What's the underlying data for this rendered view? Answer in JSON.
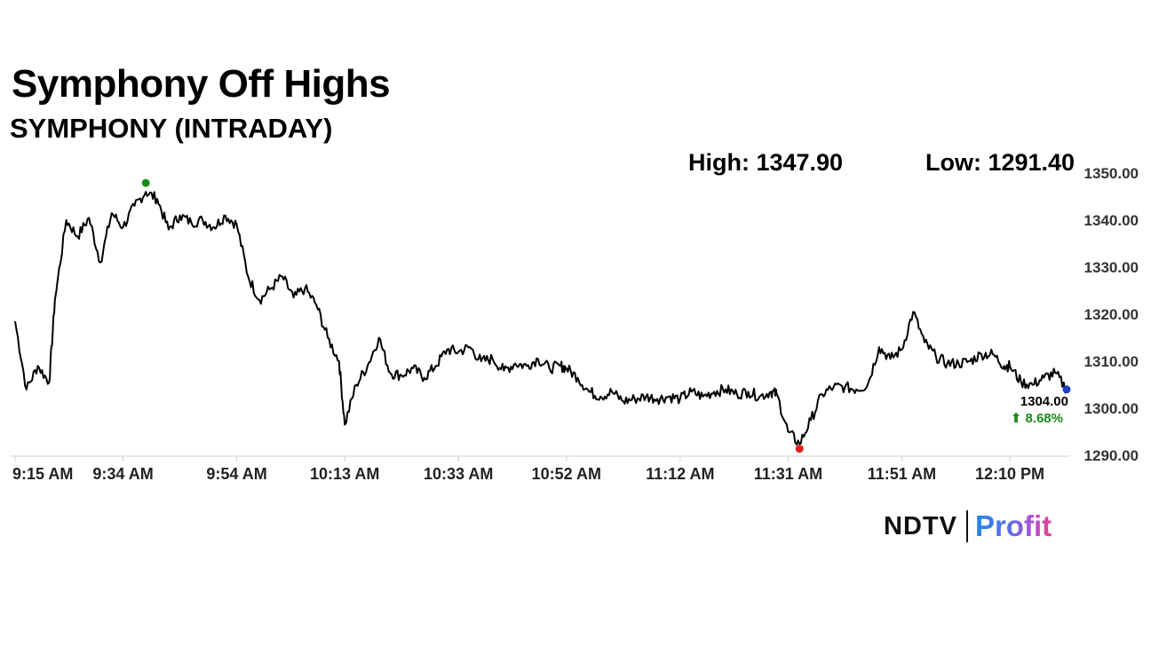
{
  "header": {
    "title": "Symphony Off Highs",
    "subtitle": "SYMPHONY (INTRADAY)",
    "high_label": "High: 1347.90",
    "low_label": "Low: 1291.40"
  },
  "branding": {
    "ndtv": "NDTV",
    "profit": "Profit"
  },
  "chart_data": {
    "type": "line",
    "title": "Symphony Off Highs",
    "subtitle": "SYMPHONY (INTRADAY)",
    "xlabel": "",
    "ylabel": "",
    "ylim": [
      1290,
      1350
    ],
    "y_axis_position": "right",
    "grid": false,
    "y_ticks": [
      "1290.00",
      "1300.00",
      "1310.00",
      "1320.00",
      "1330.00",
      "1340.00",
      "1350.00"
    ],
    "x_ticks": [
      "9:15 AM",
      "9:34 AM",
      "9:54 AM",
      "10:13 AM",
      "10:33 AM",
      "10:52 AM",
      "11:12 AM",
      "11:31 AM",
      "11:51 AM",
      "12:10 PM"
    ],
    "series": [
      {
        "color": "#000000",
        "x": [
          "9:15 AM",
          "9:17 AM",
          "9:19 AM",
          "9:21 AM",
          "9:22 AM",
          "9:24 AM",
          "9:26 AM",
          "9:28 AM",
          "9:30 AM",
          "9:32 AM",
          "9:34 AM",
          "9:36 AM",
          "9:38 AM",
          "9:40 AM",
          "9:42 AM",
          "9:44 AM",
          "9:46 AM",
          "9:48 AM",
          "9:50 AM",
          "9:52 AM",
          "9:54 AM",
          "9:56 AM",
          "9:58 AM",
          "10:00 AM",
          "10:02 AM",
          "10:04 AM",
          "10:06 AM",
          "10:08 AM",
          "10:10 AM",
          "10:12 AM",
          "10:13 AM",
          "10:15 AM",
          "10:17 AM",
          "10:19 AM",
          "10:21 AM",
          "10:23 AM",
          "10:25 AM",
          "10:27 AM",
          "10:29 AM",
          "10:31 AM",
          "10:33 AM",
          "10:35 AM",
          "10:37 AM",
          "10:39 AM",
          "10:41 AM",
          "10:43 AM",
          "10:45 AM",
          "10:47 AM",
          "10:49 AM",
          "10:51 AM",
          "10:52 AM",
          "10:54 AM",
          "10:56 AM",
          "10:58 AM",
          "11:00 AM",
          "11:02 AM",
          "11:04 AM",
          "11:06 AM",
          "11:08 AM",
          "11:10 AM",
          "11:12 AM",
          "11:14 AM",
          "11:16 AM",
          "11:18 AM",
          "11:20 AM",
          "11:22 AM",
          "11:24 AM",
          "11:26 AM",
          "11:28 AM",
          "11:29 AM",
          "11:31 AM",
          "11:33 AM",
          "11:35 AM",
          "11:37 AM",
          "11:39 AM",
          "11:41 AM",
          "11:43 AM",
          "11:45 AM",
          "11:47 AM",
          "11:49 AM",
          "11:51 AM",
          "11:53 AM",
          "11:55 AM",
          "11:57 AM",
          "11:59 AM",
          "12:01 PM",
          "12:03 PM",
          "12:05 PM",
          "12:07 PM",
          "12:09 PM",
          "12:10 PM",
          "12:12 PM",
          "12:14 PM",
          "12:16 PM",
          "12:18 PM",
          "12:20 PM"
        ],
        "values": [
          1318.5,
          1304.0,
          1309.0,
          1305.5,
          1323.0,
          1340.0,
          1336.5,
          1340.5,
          1331.0,
          1341.5,
          1338.5,
          1343.0,
          1346.0,
          1344.5,
          1338.0,
          1341.0,
          1339.5,
          1340.0,
          1338.5,
          1341.0,
          1339.0,
          1328.0,
          1323.0,
          1325.5,
          1328.0,
          1323.5,
          1325.5,
          1322.0,
          1315.0,
          1310.0,
          1296.5,
          1305.0,
          1309.0,
          1315.0,
          1307.5,
          1307.0,
          1308.5,
          1306.5,
          1309.0,
          1312.5,
          1312.0,
          1313.0,
          1310.0,
          1310.5,
          1308.0,
          1309.5,
          1309.0,
          1310.5,
          1308.5,
          1309.0,
          1308.5,
          1306.5,
          1303.5,
          1302.5,
          1303.5,
          1301.5,
          1302.0,
          1302.5,
          1302.0,
          1302.5,
          1302.0,
          1303.5,
          1302.5,
          1303.5,
          1304.0,
          1303.0,
          1303.5,
          1302.5,
          1303.5,
          1303.0,
          1295.0,
          1292.4,
          1297.5,
          1303.0,
          1304.5,
          1304.5,
          1304.0,
          1305.0,
          1313.0,
          1310.5,
          1312.5,
          1320.5,
          1314.0,
          1311.0,
          1309.5,
          1309.5,
          1310.0,
          1311.5,
          1311.5,
          1309.0,
          1309.0,
          1305.5,
          1305.0,
          1306.5,
          1307.5,
          1304.0
        ]
      }
    ],
    "markers": [
      {
        "label": "high",
        "x": "9:38 AM",
        "y": 1347.9,
        "color": "#1a8a1a"
      },
      {
        "label": "low",
        "x": "11:33 AM",
        "y": 1291.4,
        "color": "#e02020"
      },
      {
        "label": "last",
        "x": "12:20 PM",
        "y": 1304.0,
        "color": "#1f3fbf"
      }
    ],
    "last_price": "1304.00",
    "last_change": "⬆ 8.68%"
  }
}
